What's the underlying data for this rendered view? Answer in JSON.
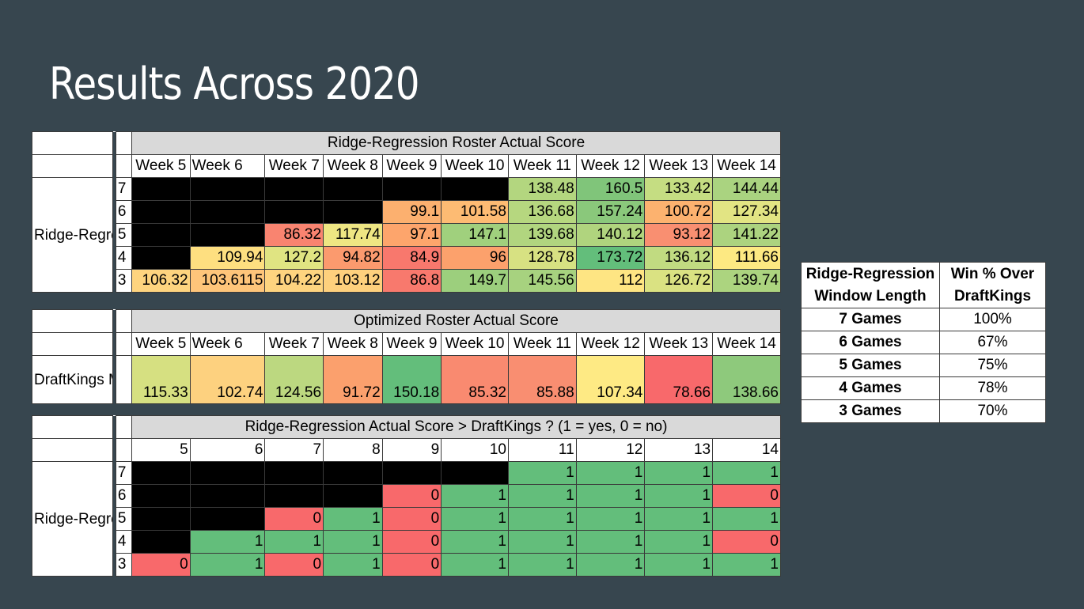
{
  "title": "Results Across 2020",
  "ridge_table": {
    "title": "Ridge-Regression Roster Actual  Score",
    "weeks": [
      "Week 5",
      "Week 6",
      "Week 7",
      "Week 8",
      "Week 9",
      "Week 10",
      "Week 11",
      "Week 12",
      "Week 13",
      "Week 14"
    ],
    "row_label": "Ridge-Regression Window Size",
    "rows": [
      {
        "window": "7",
        "values": [
          null,
          null,
          null,
          null,
          null,
          null,
          "138.48",
          "160.5",
          "133.42",
          "144.44"
        ]
      },
      {
        "window": "6",
        "values": [
          null,
          null,
          null,
          null,
          "99.1",
          "101.58",
          "136.68",
          "157.24",
          "100.72",
          "127.34"
        ]
      },
      {
        "window": "5",
        "values": [
          null,
          null,
          "86.32",
          "117.74",
          "97.1",
          "147.1",
          "139.68",
          "140.12",
          "93.12",
          "141.22"
        ]
      },
      {
        "window": "4",
        "values": [
          null,
          "109.94",
          "127.2",
          "94.82",
          "84.9",
          "96",
          "128.78",
          "173.72",
          "136.12",
          "111.66"
        ]
      },
      {
        "window": "3",
        "values": [
          "106.32",
          "103.6115",
          "104.22",
          "103.12",
          "86.8",
          "149.7",
          "145.56",
          "112",
          "126.72",
          "139.74"
        ]
      }
    ],
    "colors": [
      [
        null,
        null,
        null,
        null,
        null,
        null,
        "#b3d67f",
        "#80c57a",
        "#c5dd82",
        "#aad380"
      ],
      [
        null,
        null,
        null,
        null,
        "#fcb06f",
        "#fdbb73",
        "#b6d77f",
        "#8ac87b",
        "#fcb26f",
        "#e2e483"
      ],
      [
        null,
        null,
        "#f98470",
        "#eee683",
        "#fda56c",
        "#a0d07d",
        "#b1d57f",
        "#b0d47e",
        "#f98f71",
        "#acd37f"
      ],
      [
        null,
        "#fedf80",
        "#e0e482",
        "#fb9a6e",
        "#f8786d",
        "#fca16c",
        "#d7e182",
        "#63be7b",
        "#c1db81",
        "#fde982"
      ],
      [
        "#fed47f",
        "#fec57a",
        "#fed47f",
        "#fed07d",
        "#f8796d",
        "#9ccf7d",
        "#a7d27f",
        "#fee583",
        "#dae282",
        "#acd47f"
      ]
    ]
  },
  "dk_table": {
    "title": "Optimized Roster Actual  Score",
    "weeks": [
      "Week 5",
      "Week 6",
      "Week 7",
      "Week 8",
      "Week 9",
      "Week 10",
      "Week 11",
      "Week 12",
      "Week 13",
      "Week 14"
    ],
    "row_label": "DraftKings Model",
    "values": [
      "115.33",
      "102.74",
      "124.56",
      "91.72",
      "150.18",
      "85.32",
      "85.88",
      "107.34",
      "78.66",
      "138.66"
    ],
    "colors": [
      "#d6e081",
      "#fdd17f",
      "#bcd880",
      "#fba06d",
      "#63be7b",
      "#f98a70",
      "#f98e71",
      "#feea84",
      "#f8696b",
      "#8ec97c"
    ]
  },
  "compare_table": {
    "title": "Ridge-Regression Actual Score > DraftKings ? (1 = yes, 0 = no)",
    "weeks": [
      "5",
      "6",
      "7",
      "8",
      "9",
      "10",
      "11",
      "12",
      "13",
      "14"
    ],
    "row_label": "Ridge-Regression Window Size",
    "rows": [
      {
        "window": "7",
        "values": [
          null,
          null,
          null,
          null,
          null,
          null,
          "1",
          "1",
          "1",
          "1"
        ]
      },
      {
        "window": "6",
        "values": [
          null,
          null,
          null,
          null,
          "0",
          "1",
          "1",
          "1",
          "1",
          "0"
        ]
      },
      {
        "window": "5",
        "values": [
          null,
          null,
          "0",
          "1",
          "0",
          "1",
          "1",
          "1",
          "1",
          "1"
        ]
      },
      {
        "window": "4",
        "values": [
          null,
          "1",
          "1",
          "1",
          "0",
          "1",
          "1",
          "1",
          "1",
          "0"
        ]
      },
      {
        "window": "3",
        "values": [
          "0",
          "1",
          "0",
          "1",
          "0",
          "1",
          "1",
          "1",
          "1",
          "1"
        ]
      }
    ],
    "yes_color": "#63be7b",
    "no_color": "#f8696b",
    "empty_color": "#000000"
  },
  "win_table": {
    "headers": [
      "Ridge-Regression Window Length",
      "Win % Over DraftKings"
    ],
    "rows": [
      {
        "label": "7 Games",
        "value": "100%"
      },
      {
        "label": "6 Games",
        "value": "67%"
      },
      {
        "label": "5 Games",
        "value": "75%"
      },
      {
        "label": "4 Games",
        "value": "78%"
      },
      {
        "label": "3 Games",
        "value": "70%"
      }
    ]
  }
}
